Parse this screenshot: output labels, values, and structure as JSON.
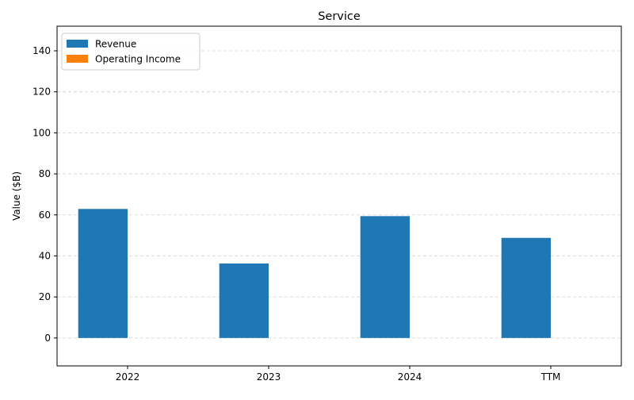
{
  "chart_data": {
    "type": "bar",
    "title": "Service",
    "xlabel": "",
    "ylabel": "Value ($B)",
    "categories": [
      "2022",
      "2023",
      "2024",
      "TTM"
    ],
    "series": [
      {
        "name": "Revenue",
        "values": [
          62.9,
          36.3,
          59.4,
          48.8
        ],
        "color": "#1f77b4"
      },
      {
        "name": "Operating Income",
        "values": [
          0,
          0,
          0,
          0
        ],
        "color": "#ff7f0e"
      }
    ],
    "ylim": [
      -13.6,
      152
    ],
    "yticks": [
      0,
      20,
      40,
      60,
      80,
      100,
      120,
      140
    ],
    "grid": "y-dashed",
    "legend_position": "top-left"
  }
}
